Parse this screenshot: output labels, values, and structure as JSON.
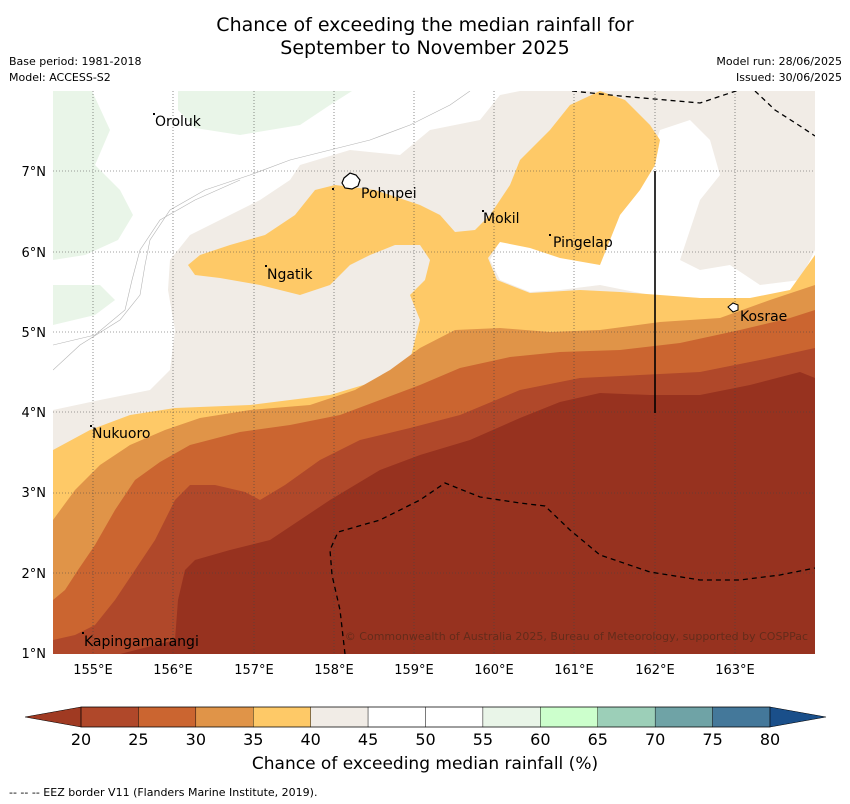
{
  "title": {
    "line1": "Chance of exceeding the median rainfall for",
    "line2": "September to November 2025"
  },
  "meta": {
    "base_period": "Base period: 1981-2018",
    "model": "Model: ACCESS-S2",
    "model_run": "Model run: 28/06/2025",
    "issued": "Issued: 30/06/2025"
  },
  "map": {
    "lon_ticks": [
      "155°E",
      "156°E",
      "157°E",
      "158°E",
      "159°E",
      "160°E",
      "161°E",
      "162°E",
      "163°E"
    ],
    "lat_ticks": [
      "1°N",
      "2°N",
      "3°N",
      "4°N",
      "5°N",
      "6°N",
      "7°N"
    ],
    "places": [
      "Oroluk",
      "Pohnpei",
      "Mokil",
      "Pingelap",
      "Ngatik",
      "Kosrae",
      "Nukuoro",
      "Kapingamarangi"
    ],
    "copyright": "© Commonwealth of Australia 2025, Bureau of Meteorology, supported by COSPPac"
  },
  "colorbar": {
    "ticks": [
      "20",
      "25",
      "30",
      "35",
      "40",
      "45",
      "50",
      "55",
      "60",
      "65",
      "70",
      "75",
      "80"
    ],
    "colors": {
      "below_min": "#a03a22",
      "c20_25": "#b0482a",
      "c25_30": "#cb6530",
      "c30_35": "#e09448",
      "c35_40": "#fec967",
      "c40_45": "#f1ece6",
      "c45_50": "#ffffff",
      "c50_55": "#ffffff",
      "c55_60": "#e9f5e8",
      "c60_65": "#ccffcc",
      "c65_70": "#9ccfb8",
      "c70_75": "#6fa3a6",
      "c75_80": "#44789a",
      "above_max": "#1a4f8a"
    },
    "label": "Chance of exceeding median rainfall (%)"
  },
  "footnote": "--  --  -- EEZ border V11 (Flanders Marine Institute, 2019)."
}
